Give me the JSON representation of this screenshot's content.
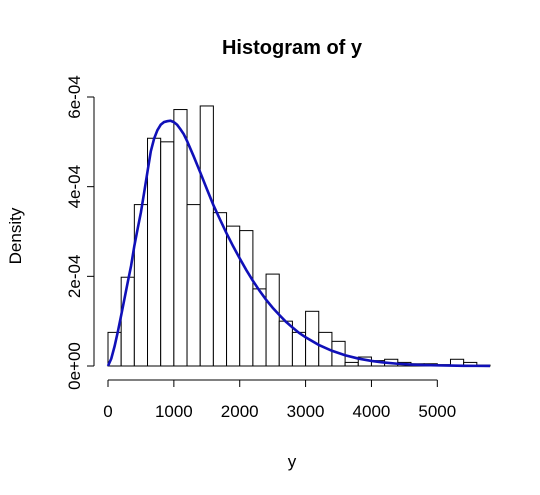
{
  "chart_data": {
    "type": "bar",
    "title": "Histogram of y",
    "xlabel": "y",
    "ylabel": "Density",
    "xlim": [
      0,
      5800
    ],
    "ylim": [
      0,
      0.0006
    ],
    "x_ticks": [
      0,
      1000,
      2000,
      3000,
      4000,
      5000
    ],
    "x_tick_labels": [
      "0",
      "1000",
      "2000",
      "3000",
      "4000",
      "5000"
    ],
    "y_ticks": [
      0,
      0.0002,
      0.0004,
      0.0006
    ],
    "y_tick_labels": [
      "0e+00",
      "2e-04",
      "4e-04",
      "6e-04"
    ],
    "bin_width": 200,
    "bins": [
      {
        "start": 0,
        "end": 200,
        "density": 7.5e-05
      },
      {
        "start": 200,
        "end": 400,
        "density": 0.000198
      },
      {
        "start": 400,
        "end": 600,
        "density": 0.00036
      },
      {
        "start": 600,
        "end": 800,
        "density": 0.000508
      },
      {
        "start": 800,
        "end": 1000,
        "density": 0.0005
      },
      {
        "start": 1000,
        "end": 1200,
        "density": 0.000572
      },
      {
        "start": 1200,
        "end": 1400,
        "density": 0.00036
      },
      {
        "start": 1400,
        "end": 1600,
        "density": 0.00058
      },
      {
        "start": 1600,
        "end": 1800,
        "density": 0.000342
      },
      {
        "start": 1800,
        "end": 2000,
        "density": 0.000312
      },
      {
        "start": 2000,
        "end": 2200,
        "density": 0.000302
      },
      {
        "start": 2200,
        "end": 2400,
        "density": 0.000172
      },
      {
        "start": 2400,
        "end": 2600,
        "density": 0.000205
      },
      {
        "start": 2600,
        "end": 2800,
        "density": 0.0001
      },
      {
        "start": 2800,
        "end": 3000,
        "density": 7.5e-05
      },
      {
        "start": 3000,
        "end": 3200,
        "density": 0.000122
      },
      {
        "start": 3200,
        "end": 3400,
        "density": 7.5e-05
      },
      {
        "start": 3400,
        "end": 3600,
        "density": 5.5e-05
      },
      {
        "start": 3600,
        "end": 3800,
        "density": 8e-06
      },
      {
        "start": 3800,
        "end": 4000,
        "density": 2e-05
      },
      {
        "start": 4000,
        "end": 4200,
        "density": 1.2e-05
      },
      {
        "start": 4200,
        "end": 4400,
        "density": 1.5e-05
      },
      {
        "start": 4400,
        "end": 4600,
        "density": 8e-06
      },
      {
        "start": 4600,
        "end": 4800,
        "density": 5e-06
      },
      {
        "start": 4800,
        "end": 5000,
        "density": 5e-06
      },
      {
        "start": 5000,
        "end": 5200,
        "density": 3e-06
      },
      {
        "start": 5200,
        "end": 5400,
        "density": 1.5e-05
      },
      {
        "start": 5400,
        "end": 5600,
        "density": 8e-06
      },
      {
        "start": 5600,
        "end": 5800,
        "density": 2e-06
      }
    ],
    "curve": {
      "type": "line",
      "color": "#1010b8",
      "x": [
        0,
        50,
        100,
        150,
        200,
        250,
        300,
        350,
        400,
        450,
        500,
        550,
        600,
        650,
        700,
        750,
        800,
        850,
        900,
        950,
        1000,
        1050,
        1100,
        1150,
        1200,
        1300,
        1400,
        1500,
        1600,
        1700,
        1800,
        1900,
        2000,
        2100,
        2200,
        2300,
        2400,
        2500,
        2600,
        2700,
        2800,
        2900,
        3000,
        3200,
        3400,
        3600,
        3800,
        4000,
        4200,
        4400,
        4600,
        4800,
        5000,
        5200,
        5400,
        5600,
        5800
      ],
      "y": [
        0,
        1.65e-05,
        4.4e-05,
        7.7e-05,
        0.000113,
        0.00015,
        0.000187,
        0.000223,
        0.000268,
        0.000306,
        0.000343,
        0.000388,
        0.000434,
        0.000479,
        0.000507,
        0.000526,
        0.000538,
        0.000544,
        0.000546,
        0.000547,
        0.000544,
        0.000538,
        0.000528,
        0.000517,
        0.000502,
        0.000468,
        0.000432,
        0.000395,
        0.000359,
        0.000327,
        0.000296,
        0.000267,
        0.00024,
        0.000214,
        0.00019,
        0.000168,
        0.000148,
        0.00013,
        0.000114,
        9.9e-05,
        8.6e-05,
        7.4e-05,
        6.4e-05,
        4.7e-05,
        3.4e-05,
        2.4e-05,
        1.66e-05,
        1.13e-05,
        7.6e-06,
        5e-06,
        3.3e-06,
        2.1e-06,
        1.4e-06,
        9e-07,
        5e-07,
        3e-07,
        2e-07
      ]
    }
  }
}
